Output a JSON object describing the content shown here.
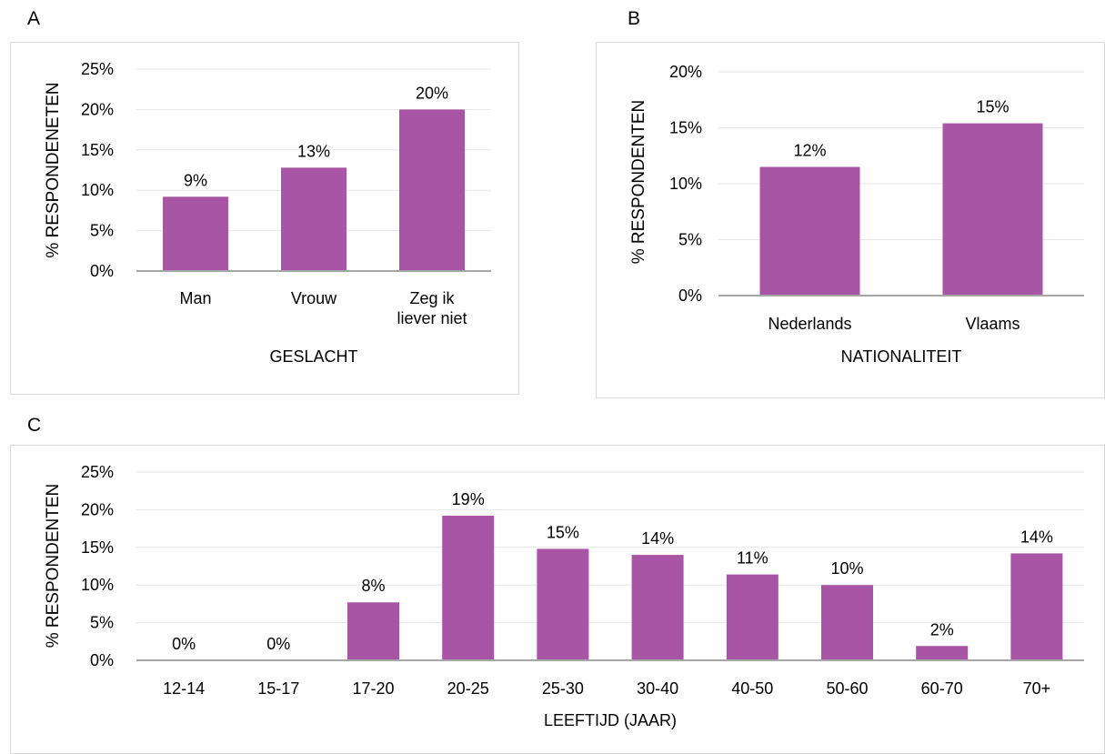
{
  "colors": {
    "bar": "#a855a5",
    "frame": "#d9d9d9",
    "grid": "#e6e6e6",
    "axis": "#a6a6a6"
  },
  "chart_data": [
    {
      "panel": "A",
      "type": "bar",
      "categories": [
        [
          "Man"
        ],
        [
          "Vrouw"
        ],
        [
          "Zeg ik",
          "liever niet"
        ]
      ],
      "values": [
        9.2,
        12.8,
        20.0
      ],
      "data_labels": [
        "9%",
        "13%",
        "20%"
      ],
      "xlabel": "GESLACHT",
      "ylabel": "% RESPONDENETEN",
      "ylim": [
        0,
        25
      ],
      "ytick_values": [
        0,
        5,
        10,
        15,
        20,
        25
      ],
      "ytick_labels": [
        "0%",
        "5%",
        "10%",
        "15%",
        "20%",
        "25%"
      ],
      "grid": true,
      "legend": "none"
    },
    {
      "panel": "B",
      "type": "bar",
      "categories": [
        [
          "Nederlands"
        ],
        [
          "Vlaams"
        ]
      ],
      "values": [
        11.5,
        15.4
      ],
      "data_labels": [
        "12%",
        "15%"
      ],
      "xlabel": "NATIONALITEIT",
      "ylabel": "% RESPONDENTEN",
      "ylim": [
        0,
        20
      ],
      "ytick_values": [
        0,
        5,
        10,
        15,
        20
      ],
      "ytick_labels": [
        "0%",
        "5%",
        "10%",
        "15%",
        "20%"
      ],
      "grid": true,
      "legend": "none"
    },
    {
      "panel": "C",
      "type": "bar",
      "categories": [
        [
          "12-14"
        ],
        [
          "15-17"
        ],
        [
          "17-20"
        ],
        [
          "20-25"
        ],
        [
          "25-30"
        ],
        [
          "30-40"
        ],
        [
          "40-50"
        ],
        [
          "50-60"
        ],
        [
          "60-70"
        ],
        [
          "70+"
        ]
      ],
      "values": [
        0,
        0,
        7.7,
        19.2,
        14.8,
        14.0,
        11.4,
        10.0,
        1.9,
        14.2
      ],
      "data_labels": [
        "0%",
        "0%",
        "8%",
        "19%",
        "15%",
        "14%",
        "11%",
        "10%",
        "2%",
        "14%"
      ],
      "xlabel": "LEEFTIJD (JAAR)",
      "ylabel": "% RESPONDENTEN",
      "ylim": [
        0,
        25
      ],
      "ytick_values": [
        0,
        5,
        10,
        15,
        20,
        25
      ],
      "ytick_labels": [
        "0%",
        "5%",
        "10%",
        "15%",
        "20%",
        "25%"
      ],
      "grid": true,
      "legend": "none"
    }
  ]
}
